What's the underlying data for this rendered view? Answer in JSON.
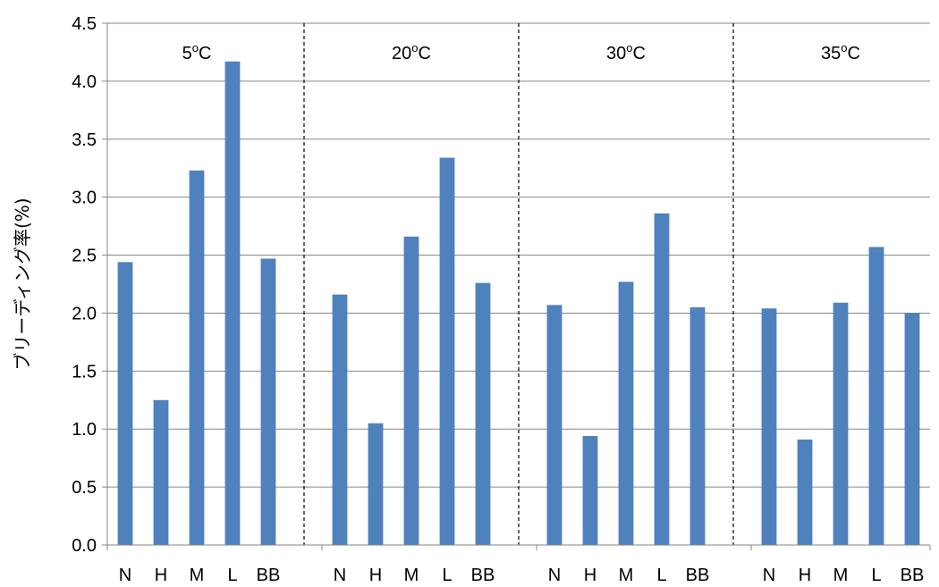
{
  "chart_data": {
    "type": "bar",
    "xlabel": "",
    "ylabel": "ブリーディング率(%)",
    "ylim": [
      0,
      4.5
    ],
    "yticks": [
      "0.0",
      "0.5",
      "1.0",
      "1.5",
      "2.0",
      "2.5",
      "3.0",
      "3.5",
      "4.0",
      "4.5"
    ],
    "grid": true,
    "legend": "none",
    "bar_color": "#4F81BD",
    "groups": [
      {
        "label_base": "5",
        "label_sup": "o",
        "label_unit": "C",
        "categories": [
          "N",
          "H",
          "M",
          "L",
          "BB"
        ],
        "values": [
          2.44,
          1.25,
          3.23,
          4.17,
          2.47
        ]
      },
      {
        "label_base": "20",
        "label_sup": "o",
        "label_unit": "C",
        "categories": [
          "N",
          "H",
          "M",
          "L",
          "BB"
        ],
        "values": [
          2.16,
          1.05,
          2.66,
          3.34,
          2.26
        ]
      },
      {
        "label_base": "30",
        "label_sup": "o",
        "label_unit": "C",
        "categories": [
          "N",
          "H",
          "M",
          "L",
          "BB"
        ],
        "values": [
          2.07,
          0.94,
          2.27,
          2.86,
          2.05
        ]
      },
      {
        "label_base": "35",
        "label_sup": "o",
        "label_unit": "C",
        "categories": [
          "N",
          "H",
          "M",
          "L",
          "BB"
        ],
        "values": [
          2.04,
          0.91,
          2.09,
          2.57,
          2.0
        ]
      }
    ]
  }
}
